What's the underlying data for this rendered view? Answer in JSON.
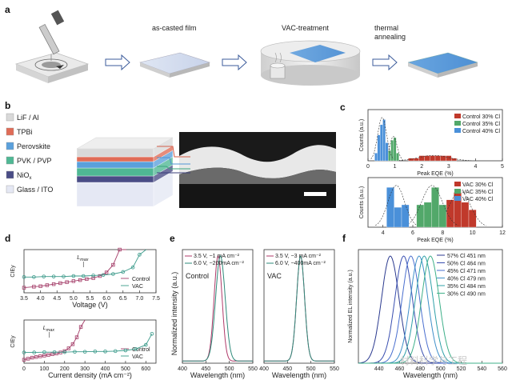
{
  "panel_a": {
    "letter": "a",
    "steps": [
      {
        "label": "as-casted film"
      },
      {
        "label": "VAC-treatment"
      },
      {
        "label": "thermal annealing"
      }
    ]
  },
  "panel_b": {
    "letter": "b",
    "layers": [
      {
        "label": "LiF / Al",
        "color": "#d9d9d9"
      },
      {
        "label": "TPBi",
        "color": "#e06c57"
      },
      {
        "label": "Perovskite",
        "color": "#5aa0dc"
      },
      {
        "label": "PVK / PVP",
        "color": "#4fb894"
      },
      {
        "label": "NiOx",
        "color": "#4a4d86"
      },
      {
        "label": "Glass / ITO",
        "color": "#e5e8f4"
      }
    ]
  },
  "panel_c": {
    "letter": "c",
    "top": {
      "xlabel": "Peak EQE (%)",
      "ylabel": "Counts (a.u.)",
      "ticks": [
        "0",
        "1",
        "2",
        "3",
        "4",
        "5"
      ],
      "legend": [
        "Control 30% Cl",
        "Control 35% Cl",
        "Control 40% Cl"
      ]
    },
    "bottom": {
      "xlabel": "Peak EQE (%)",
      "ylabel": "Counts (a.u.)",
      "ticks": [
        "4",
        "6",
        "8",
        "10",
        "12"
      ],
      "legend": [
        "VAC 30% Cl",
        "VAC 35% Cl",
        "VAC 40% Cl"
      ]
    }
  },
  "panel_d": {
    "letter": "d",
    "top": {
      "ylabel": "CIEy",
      "xlabel": "Voltage (V)",
      "ticks": [
        "3.5",
        "4.0",
        "4.5",
        "5.0",
        "5.5",
        "6.0",
        "6.5",
        "7.0",
        "7.5"
      ],
      "annotation": "Lmax",
      "legend": [
        "Control",
        "VAC"
      ]
    },
    "bottom": {
      "ylabel": "CIEy",
      "xlabel": "Current density (mA cm⁻²)",
      "ticks": [
        "0",
        "100",
        "200",
        "300",
        "400",
        "500",
        "600"
      ],
      "annotation": "Lmax",
      "legend": [
        "Control",
        "VAC"
      ]
    }
  },
  "panel_e": {
    "letter": "e",
    "ylabel": "Normalized intensity (a.u.)",
    "left": {
      "name": "Control",
      "xlabel": "Wavelength (nm)",
      "ticks": [
        "400",
        "450",
        "500",
        "550"
      ],
      "legend": [
        "3.5 V, ~1 mA cm⁻²",
        "6.0 V, ~200mA cm⁻²"
      ]
    },
    "right": {
      "name": "VAC",
      "xlabel": "Wavelength (nm)",
      "ticks": [
        "400",
        "450",
        "500",
        "550"
      ],
      "legend": [
        "3.5 V, ~3 mA cm⁻²",
        "6.0 V, ~400mA cm⁻²"
      ]
    }
  },
  "panel_f": {
    "letter": "f",
    "ylabel": "Normalized EL intensity (a.u.)",
    "xlabel": "Wavelength (nm)",
    "ticks": [
      "440",
      "460",
      "480",
      "500",
      "520",
      "540",
      "560"
    ],
    "watermark": "材料科学与工程"
  },
  "chart_data": [
    {
      "type": "bar",
      "title": "",
      "xlabel": "Peak EQE (%)",
      "ylabel": "Counts (a.u.)",
      "xlim": [
        0,
        5
      ],
      "series": [
        {
          "name": "Control 30% Cl",
          "color": "#c0392b",
          "bins": [
            1.6,
            1.8,
            2.0,
            2.2,
            2.4,
            2.6,
            2.8,
            3.0,
            3.2
          ],
          "values": [
            1,
            1,
            2,
            2,
            2,
            2,
            2,
            2,
            1
          ]
        },
        {
          "name": "Control 35% Cl",
          "color": "#52a86a",
          "bins": [
            0.8,
            0.9,
            1.0,
            1.1
          ],
          "values": [
            4,
            8,
            9,
            3
          ]
        },
        {
          "name": "Control 40% Cl",
          "color": "#4a90d9",
          "bins": [
            0.3,
            0.4,
            0.5,
            0.6,
            0.7
          ],
          "values": [
            3,
            10,
            14,
            16,
            7
          ]
        }
      ]
    },
    {
      "type": "bar",
      "title": "",
      "xlabel": "Peak EQE (%)",
      "ylabel": "Counts (a.u.)",
      "xlim": [
        3,
        12
      ],
      "series": [
        {
          "name": "VAC 30% Cl",
          "color": "#c0392b",
          "bins": [
            8.5,
            9.0,
            9.5,
            10.0
          ],
          "values": [
            11,
            14,
            10,
            7
          ]
        },
        {
          "name": "VAC 35% Cl",
          "color": "#52a86a",
          "bins": [
            6.5,
            7.0,
            7.5,
            8.0
          ],
          "values": [
            9,
            10,
            16,
            9
          ]
        },
        {
          "name": "VAC 40% Cl",
          "color": "#4a90d9",
          "bins": [
            4.5,
            5.0,
            5.5
          ],
          "values": [
            16,
            8,
            9
          ]
        }
      ]
    },
    {
      "type": "line",
      "xlabel": "Voltage (V)",
      "ylabel": "CIEy",
      "xlim": [
        3.5,
        7.5
      ],
      "series": [
        {
          "name": "Control",
          "color": "#a53f6a",
          "x": [
            3.5,
            3.8,
            4.0,
            4.2,
            4.4,
            4.6,
            4.8,
            5.0,
            5.2,
            5.4,
            5.6,
            5.8,
            6.0,
            6.2,
            6.4,
            6.6
          ],
          "y": [
            0.125,
            0.127,
            0.128,
            0.13,
            0.132,
            0.134,
            0.136,
            0.138,
            0.14,
            0.142,
            0.144,
            0.148,
            0.155,
            0.17,
            0.2,
            0.28
          ]
        },
        {
          "name": "VAC",
          "color": "#3a9a8a",
          "x": [
            3.5,
            3.8,
            4.1,
            4.4,
            4.7,
            5.0,
            5.3,
            5.6,
            5.9,
            6.2,
            6.5,
            6.8,
            7.0,
            7.2
          ],
          "y": [
            0.146,
            0.146,
            0.147,
            0.147,
            0.147,
            0.148,
            0.148,
            0.149,
            0.15,
            0.152,
            0.156,
            0.165,
            0.19,
            0.23
          ]
        }
      ]
    },
    {
      "type": "line",
      "xlabel": "Current density (mA cm⁻²)",
      "ylabel": "CIEy",
      "xlim": [
        0,
        650
      ],
      "series": [
        {
          "name": "Control",
          "color": "#a53f6a",
          "x": [
            0,
            20,
            40,
            60,
            80,
            100,
            120,
            140,
            160,
            180,
            200,
            220,
            240,
            260,
            280,
            300
          ],
          "y": [
            0.125,
            0.128,
            0.131,
            0.133,
            0.135,
            0.137,
            0.139,
            0.141,
            0.143,
            0.146,
            0.15,
            0.158,
            0.17,
            0.19,
            0.22,
            0.26
          ]
        },
        {
          "name": "VAC",
          "color": "#3a9a8a",
          "x": [
            0,
            50,
            100,
            150,
            200,
            250,
            300,
            350,
            400,
            450,
            500,
            550,
            600,
            630
          ],
          "y": [
            0.146,
            0.146,
            0.147,
            0.147,
            0.147,
            0.148,
            0.148,
            0.149,
            0.149,
            0.15,
            0.152,
            0.156,
            0.168,
            0.2
          ]
        }
      ]
    },
    {
      "type": "line",
      "xlabel": "Wavelength (nm)",
      "ylabel": "Normalized intensity (a.u.)",
      "xlim": [
        400,
        550
      ],
      "series": [
        {
          "name": "Control 3.5 V, ~1 mA cm⁻²",
          "color": "#b03a6a",
          "peak": 476,
          "fwhm": 20
        },
        {
          "name": "Control 6.0 V, ~200mA cm⁻²",
          "color": "#2e8a7a",
          "peak": 481,
          "fwhm": 24
        }
      ]
    },
    {
      "type": "line",
      "xlabel": "Wavelength (nm)",
      "ylabel": "Normalized intensity (a.u.)",
      "xlim": [
        400,
        550
      ],
      "series": [
        {
          "name": "VAC 3.5 V, ~3 mA cm⁻²",
          "color": "#b03a6a",
          "peak": 478,
          "fwhm": 20
        },
        {
          "name": "VAC 6.0 V, ~400mA cm⁻²",
          "color": "#2e8a7a",
          "peak": 478,
          "fwhm": 20
        }
      ]
    },
    {
      "type": "line",
      "xlabel": "Wavelength (nm)",
      "ylabel": "Normalized EL intensity (a.u.)",
      "xlim": [
        420,
        560
      ],
      "series": [
        {
          "name": "57% Cl 451 nm",
          "color": "#2b3a8f",
          "peak": 451,
          "fwhm": 20
        },
        {
          "name": "50% Cl 464 nm",
          "color": "#3a4fb0",
          "peak": 464,
          "fwhm": 20
        },
        {
          "name": "45% Cl 471 nm",
          "color": "#4a6fcf",
          "peak": 471,
          "fwhm": 20
        },
        {
          "name": "40% Cl 479 nm",
          "color": "#3f8fc9",
          "peak": 479,
          "fwhm": 20
        },
        {
          "name": "35% Cl 484 nm",
          "color": "#2fa0a8",
          "peak": 484,
          "fwhm": 20
        },
        {
          "name": "30% Cl 490 nm",
          "color": "#3fb08a",
          "peak": 490,
          "fwhm": 20
        }
      ]
    }
  ]
}
